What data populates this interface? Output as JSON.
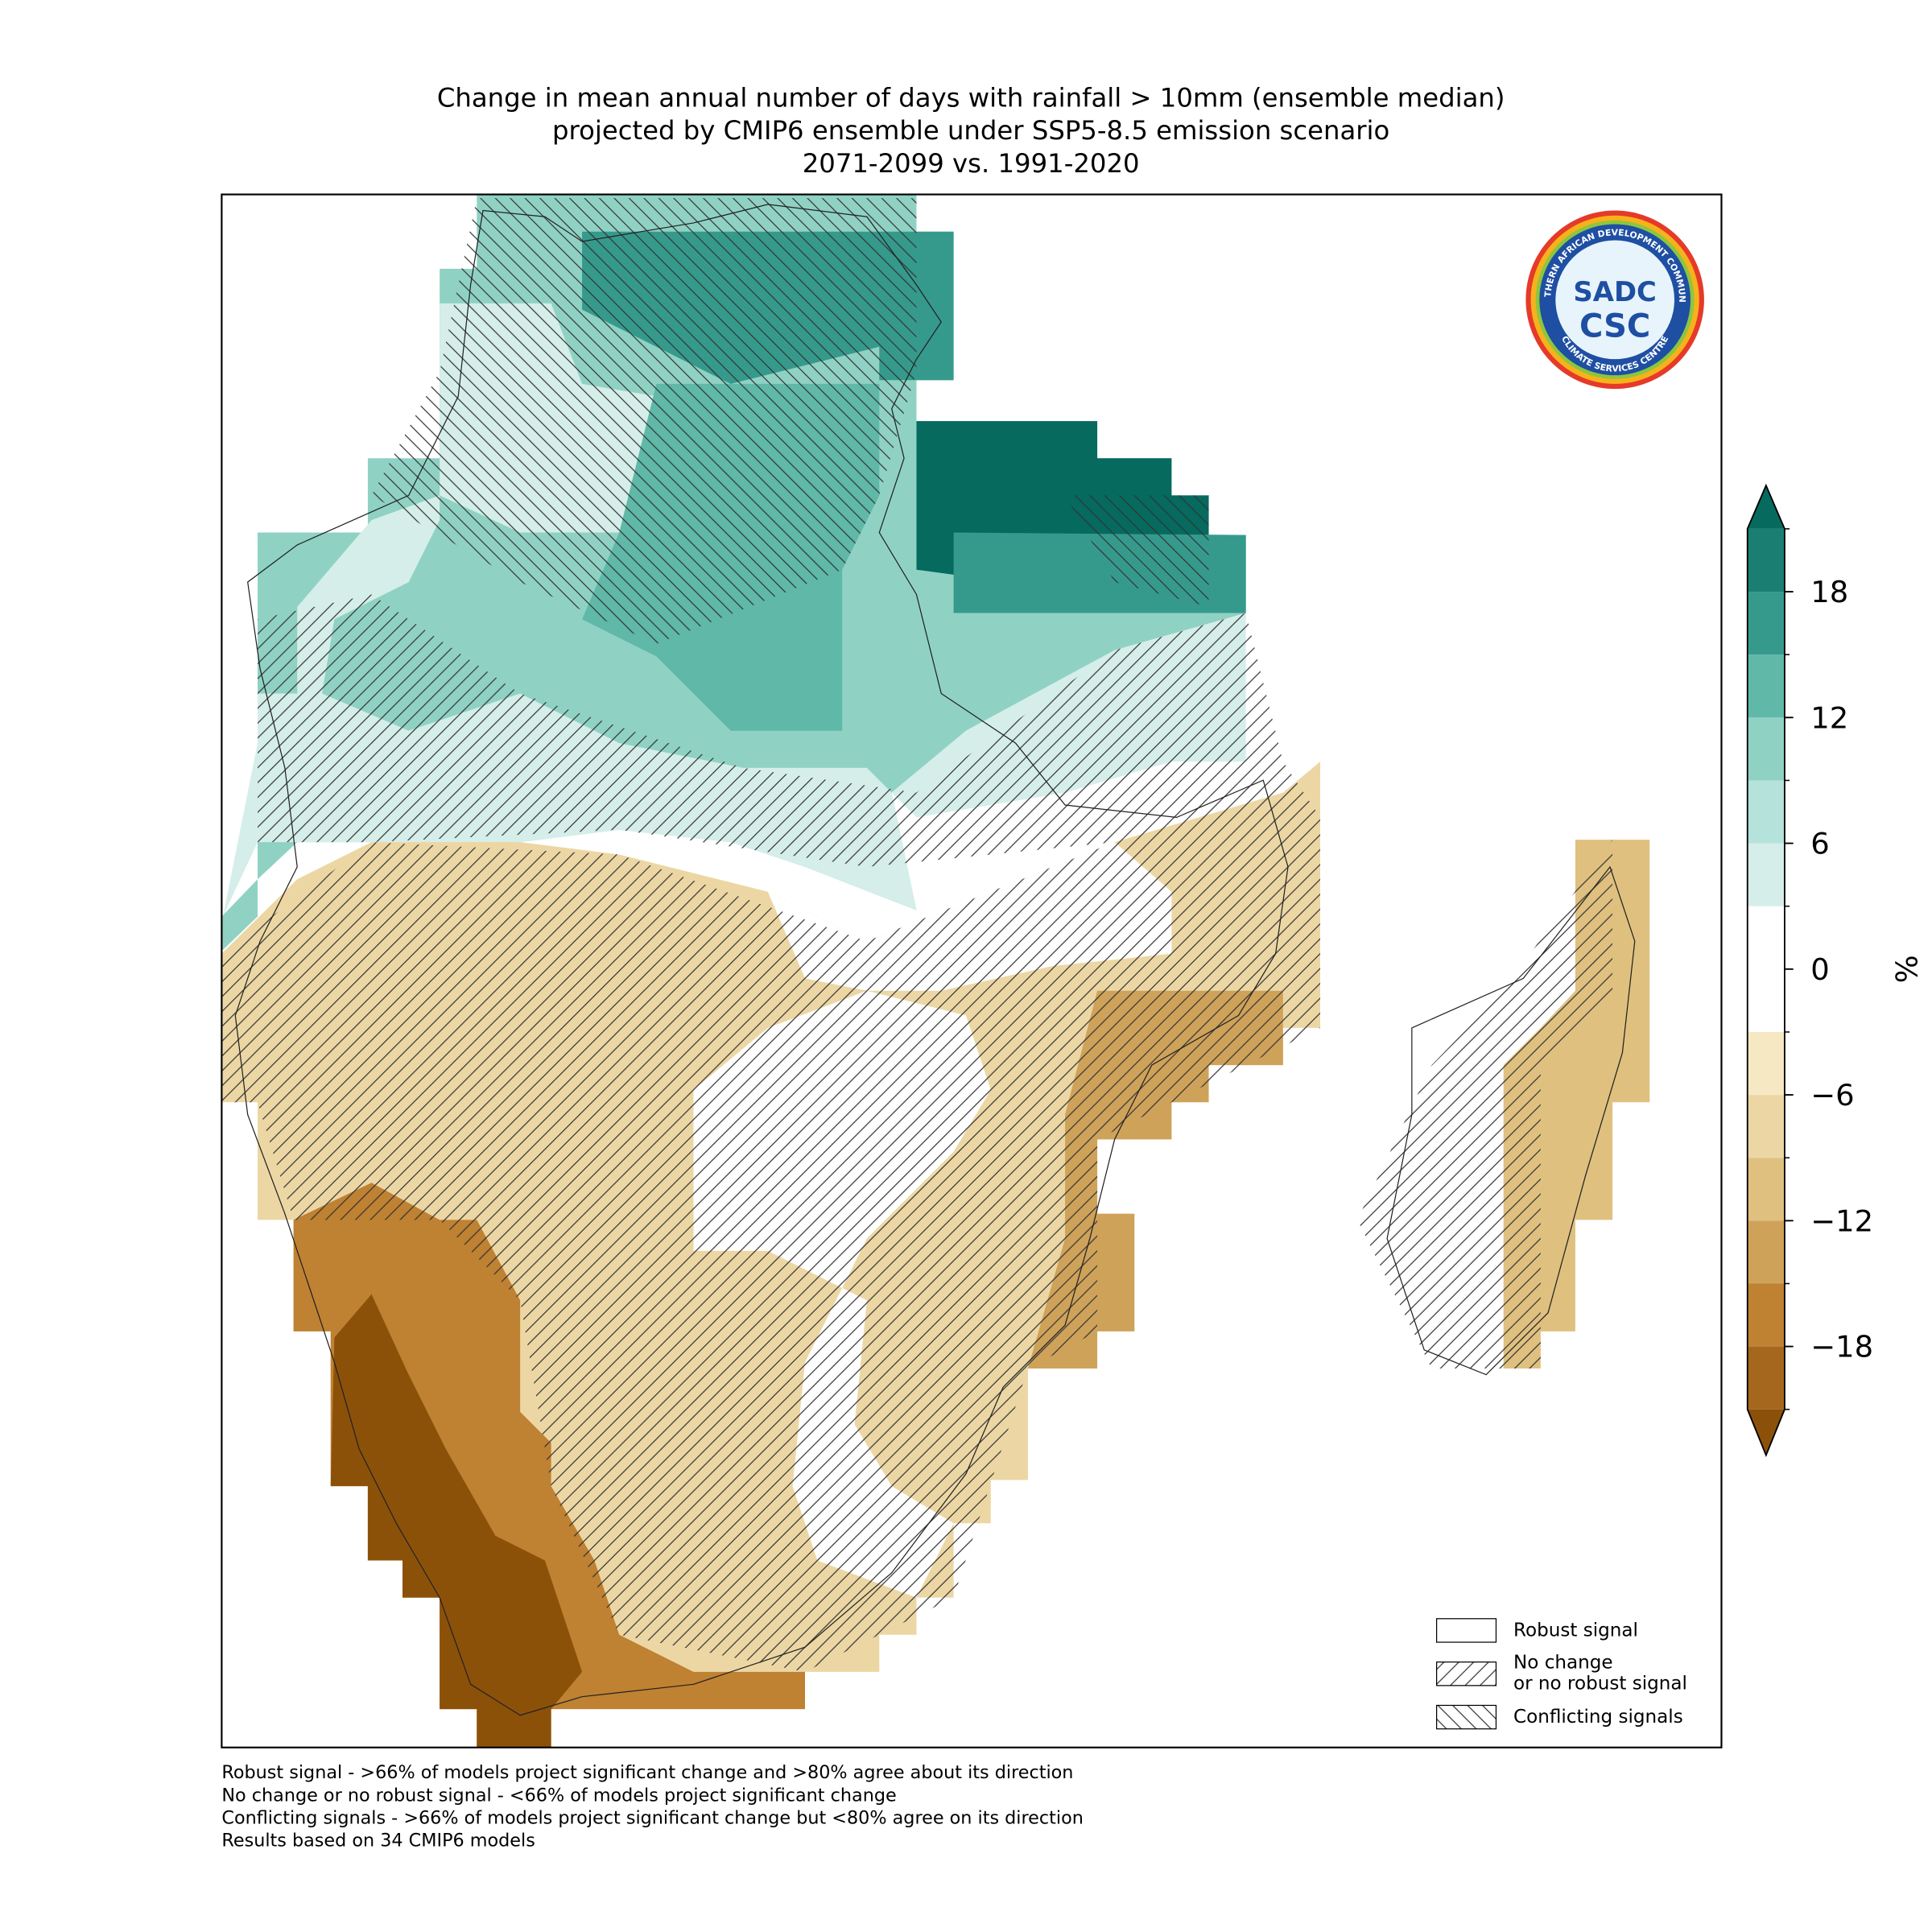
{
  "map": {
    "title": [
      "Change in mean annual number of days with rainfall > 10mm (ensemble median)",
      "projected by CMIP6 ensemble under SSP5-8.5 emission scenario",
      "2071-2099 vs. 1991-2020"
    ],
    "colorbar": {
      "label": "%",
      "lim": [
        -21,
        21
      ],
      "levels": [
        -21,
        -18,
        -15,
        -12,
        -9,
        -6,
        -3,
        3,
        6,
        9,
        12,
        15,
        18,
        21
      ],
      "colors": [
        "#a5671d",
        "#bf8132",
        "#cfa25a",
        "#dfc07f",
        "#ecd7a4",
        "#f6e8c3",
        "#ffffff",
        "#d5eee9",
        "#b5e2da",
        "#8fd2c4",
        "#5fb8a8",
        "#359a8c",
        "#1a7f72"
      ],
      "under_color": "#8c5109",
      "over_color": "#066a5f",
      "ticks": [
        {
          "value": -18,
          "label": "−18"
        },
        {
          "value": -12,
          "label": "−12"
        },
        {
          "value": -6,
          "label": "−6"
        },
        0,
        6,
        12,
        18
      ]
    },
    "legend": [
      [
        "Robust signal"
      ],
      [
        "No change",
        "or no robust signal"
      ],
      [
        "Conflicting signals"
      ]
    ],
    "footnotes": [
      "Robust signal - >66% of models project significant change and >80% agree about its direction",
      "No change or no robust signal - <66% of models project significant change",
      "Conflicting signals - >66% of models project significant change but <80% agree on its direction",
      "Results based on 34 CMIP6 models"
    ],
    "logo": {
      "top": "SOUTHERN AFRICAN DEVELOPMENT COMMUNITY",
      "bottom": "CLIMATE SERVICES CENTRE",
      "mark1": "SADC",
      "mark2": "CSC"
    }
  }
}
